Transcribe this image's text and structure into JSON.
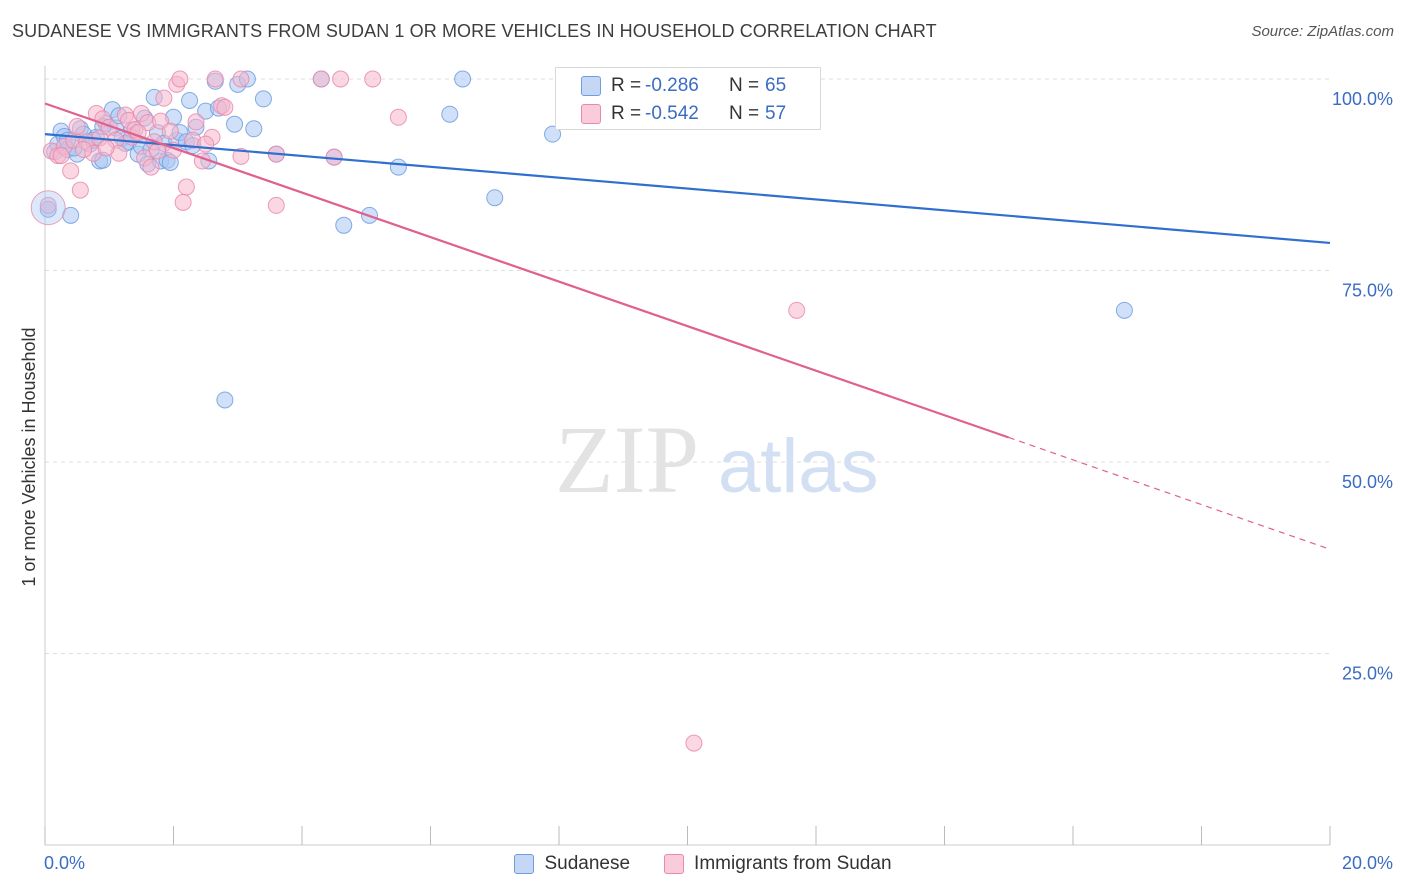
{
  "title": "SUDANESE VS IMMIGRANTS FROM SUDAN 1 OR MORE VEHICLES IN HOUSEHOLD CORRELATION CHART",
  "source": "Source: ZipAtlas.com",
  "watermark": {
    "zip": "ZIP",
    "atlas": "atlas"
  },
  "legend": {
    "series1": "Sudanese",
    "series2": "Immigrants from Sudan"
  },
  "stats": {
    "row1": {
      "r_label": "R =",
      "r_value": "-0.286",
      "n_label": "N =",
      "n_value": "65"
    },
    "row2": {
      "r_label": "R =",
      "r_value": "-0.542",
      "n_label": "N =",
      "n_value": "57"
    }
  },
  "colors": {
    "blue_fill": "#a9c6f2",
    "blue_stroke": "#6f9de0",
    "blue_line": "#2f6fcf",
    "pink_fill": "#f6b7cc",
    "pink_stroke": "#e98aab",
    "pink_line": "#e0608f",
    "tick_label": "#3a6cc4",
    "grid": "#dddddd"
  },
  "chart_data": {
    "type": "scatter",
    "title": "SUDANESE VS IMMIGRANTS FROM SUDAN 1 OR MORE VEHICLES IN HOUSEHOLD CORRELATION CHART",
    "xlabel": "",
    "ylabel": "1 or more Vehicles in Household",
    "xlim": [
      0,
      20
    ],
    "ylim": [
      0,
      100
    ],
    "x_ticks": [
      0,
      2,
      4,
      6,
      8,
      10,
      12,
      14,
      16,
      18,
      20
    ],
    "x_tick_labels": {
      "min": "0.0%",
      "max": "20.0%"
    },
    "y_ticks": [
      25,
      50,
      75,
      100
    ],
    "y_tick_labels": [
      "25.0%",
      "50.0%",
      "75.0%",
      "100.0%"
    ],
    "grid": true,
    "legend_position": "bottom",
    "series": [
      {
        "name": "Sudanese",
        "r": -0.286,
        "n": 65,
        "trend": {
          "x0": 0,
          "y0": 92.8,
          "x1": 20,
          "y1": 78.6
        },
        "points": [
          [
            0.05,
            83.0
          ],
          [
            0.15,
            90.5
          ],
          [
            0.2,
            91.5
          ],
          [
            0.25,
            93.2
          ],
          [
            0.3,
            92.5
          ],
          [
            0.35,
            90.8
          ],
          [
            0.4,
            82.2
          ],
          [
            0.5,
            90.2
          ],
          [
            0.55,
            93.5
          ],
          [
            0.6,
            92.8
          ],
          [
            0.7,
            91.5
          ],
          [
            0.8,
            92.4
          ],
          [
            0.85,
            89.3
          ],
          [
            0.9,
            89.4
          ],
          [
            0.95,
            94.2
          ],
          [
            1.05,
            96.0
          ],
          [
            1.1,
            93.6
          ],
          [
            1.15,
            95.2
          ],
          [
            1.2,
            92.3
          ],
          [
            1.3,
            91.8
          ],
          [
            1.35,
            93.3
          ],
          [
            1.45,
            90.2
          ],
          [
            1.5,
            91.2
          ],
          [
            1.55,
            94.9
          ],
          [
            1.6,
            88.9
          ],
          [
            1.7,
            97.6
          ],
          [
            1.75,
            93.0
          ],
          [
            1.8,
            89.3
          ],
          [
            1.85,
            91.6
          ],
          [
            1.9,
            89.4
          ],
          [
            1.95,
            89.1
          ],
          [
            2.0,
            95.0
          ],
          [
            2.05,
            92.0
          ],
          [
            2.1,
            93.0
          ],
          [
            2.2,
            91.8
          ],
          [
            2.25,
            97.2
          ],
          [
            2.35,
            93.7
          ],
          [
            2.5,
            95.8
          ],
          [
            2.55,
            89.3
          ],
          [
            2.65,
            99.7
          ],
          [
            2.7,
            96.2
          ],
          [
            2.8,
            58.1
          ],
          [
            2.95,
            94.1
          ],
          [
            3.0,
            99.3
          ],
          [
            3.15,
            100.0
          ],
          [
            3.25,
            93.5
          ],
          [
            3.4,
            97.4
          ],
          [
            3.6,
            90.2
          ],
          [
            4.3,
            100.0
          ],
          [
            4.5,
            89.8
          ],
          [
            4.65,
            80.9
          ],
          [
            5.05,
            82.2
          ],
          [
            5.5,
            88.5
          ],
          [
            6.3,
            95.4
          ],
          [
            6.5,
            100.0
          ],
          [
            7.0,
            84.5
          ],
          [
            7.9,
            92.8
          ],
          [
            16.8,
            69.8
          ],
          [
            0.45,
            91.0
          ],
          [
            0.75,
            92.0
          ],
          [
            1.25,
            91.6
          ],
          [
            1.65,
            90.8
          ],
          [
            2.3,
            91.3
          ],
          [
            0.9,
            93.8
          ],
          [
            0.35,
            92.0
          ]
        ]
      },
      {
        "name": "Immigrants from Sudan",
        "r": -0.542,
        "n": 57,
        "trend": {
          "x0": 0,
          "y0": 96.8,
          "x1": 15.0,
          "y1": 53.2,
          "dash_x1": 20,
          "dash_y1": 38.6
        },
        "points": [
          [
            0.05,
            83.5
          ],
          [
            0.1,
            90.6
          ],
          [
            0.2,
            90.0
          ],
          [
            0.3,
            91.2
          ],
          [
            0.4,
            88.0
          ],
          [
            0.45,
            92.0
          ],
          [
            0.5,
            93.8
          ],
          [
            0.55,
            85.5
          ],
          [
            0.65,
            91.8
          ],
          [
            0.75,
            90.3
          ],
          [
            0.8,
            95.5
          ],
          [
            0.85,
            92.3
          ],
          [
            0.9,
            94.8
          ],
          [
            1.0,
            93.7
          ],
          [
            1.1,
            92.0
          ],
          [
            1.15,
            90.3
          ],
          [
            1.25,
            95.3
          ],
          [
            1.3,
            94.6
          ],
          [
            1.35,
            92.4
          ],
          [
            1.4,
            93.4
          ],
          [
            1.5,
            95.5
          ],
          [
            1.55,
            89.7
          ],
          [
            1.6,
            94.3
          ],
          [
            1.65,
            88.5
          ],
          [
            1.7,
            91.8
          ],
          [
            1.75,
            90.6
          ],
          [
            1.8,
            94.5
          ],
          [
            1.85,
            97.5
          ],
          [
            1.95,
            93.2
          ],
          [
            2.0,
            90.7
          ],
          [
            2.05,
            99.3
          ],
          [
            2.1,
            100.0
          ],
          [
            2.15,
            83.9
          ],
          [
            2.2,
            85.9
          ],
          [
            2.3,
            92.0
          ],
          [
            2.35,
            94.4
          ],
          [
            2.45,
            89.3
          ],
          [
            2.6,
            92.4
          ],
          [
            2.65,
            100.0
          ],
          [
            2.75,
            96.5
          ],
          [
            2.8,
            96.3
          ],
          [
            3.05,
            100.0
          ],
          [
            3.05,
            89.9
          ],
          [
            3.6,
            90.2
          ],
          [
            3.6,
            83.5
          ],
          [
            4.3,
            100.0
          ],
          [
            4.5,
            89.8
          ],
          [
            4.6,
            100.0
          ],
          [
            5.1,
            100.0
          ],
          [
            5.5,
            95.0
          ],
          [
            11.7,
            69.8
          ],
          [
            10.1,
            13.3
          ],
          [
            0.25,
            90.0
          ],
          [
            0.95,
            91.0
          ],
          [
            1.45,
            93.0
          ],
          [
            2.5,
            91.5
          ],
          [
            0.6,
            90.8
          ]
        ]
      }
    ]
  }
}
